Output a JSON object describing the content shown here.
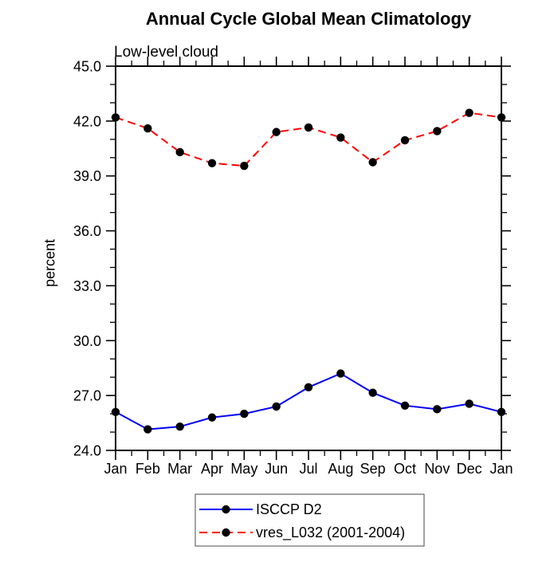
{
  "page": {
    "background": "#ffffff"
  },
  "chart_data": {
    "type": "line",
    "title": "Annual Cycle Global Mean Climatology",
    "subtitle": "Low-level cloud",
    "ylabel": "percent",
    "xlabel": "",
    "categories": [
      "Jan",
      "Feb",
      "Mar",
      "Apr",
      "May",
      "Jun",
      "Jul",
      "Aug",
      "Sep",
      "Oct",
      "Nov",
      "Dec",
      "Jan"
    ],
    "ylim": [
      24.0,
      45.0
    ],
    "y_major_step": 3.0,
    "y_minor_step": 1.0,
    "x_minor_step": 0.5,
    "y_tick_format_decimals": 1,
    "grid": false,
    "axis_color": "#000000",
    "text_color": "#000000",
    "legend": {
      "position": "bottom-center",
      "boxed": true,
      "box_border_color": "#666666"
    },
    "series": [
      {
        "name": "ISCCP D2",
        "line_color": "#0000ff",
        "line_style": "solid",
        "marker": "filled-circle",
        "marker_color": "#000000",
        "values": [
          26.1,
          25.15,
          25.3,
          25.8,
          26.0,
          26.4,
          27.45,
          28.2,
          27.15,
          26.45,
          26.25,
          26.55,
          26.1
        ]
      },
      {
        "name": "vres_L032 (2001-2004)",
        "line_color": "#ff0000",
        "line_style": "dashed",
        "marker": "filled-circle",
        "marker_color": "#000000",
        "values": [
          42.2,
          41.6,
          40.3,
          39.7,
          39.55,
          41.4,
          41.65,
          41.1,
          39.75,
          40.95,
          41.45,
          42.45,
          42.2
        ]
      }
    ]
  }
}
